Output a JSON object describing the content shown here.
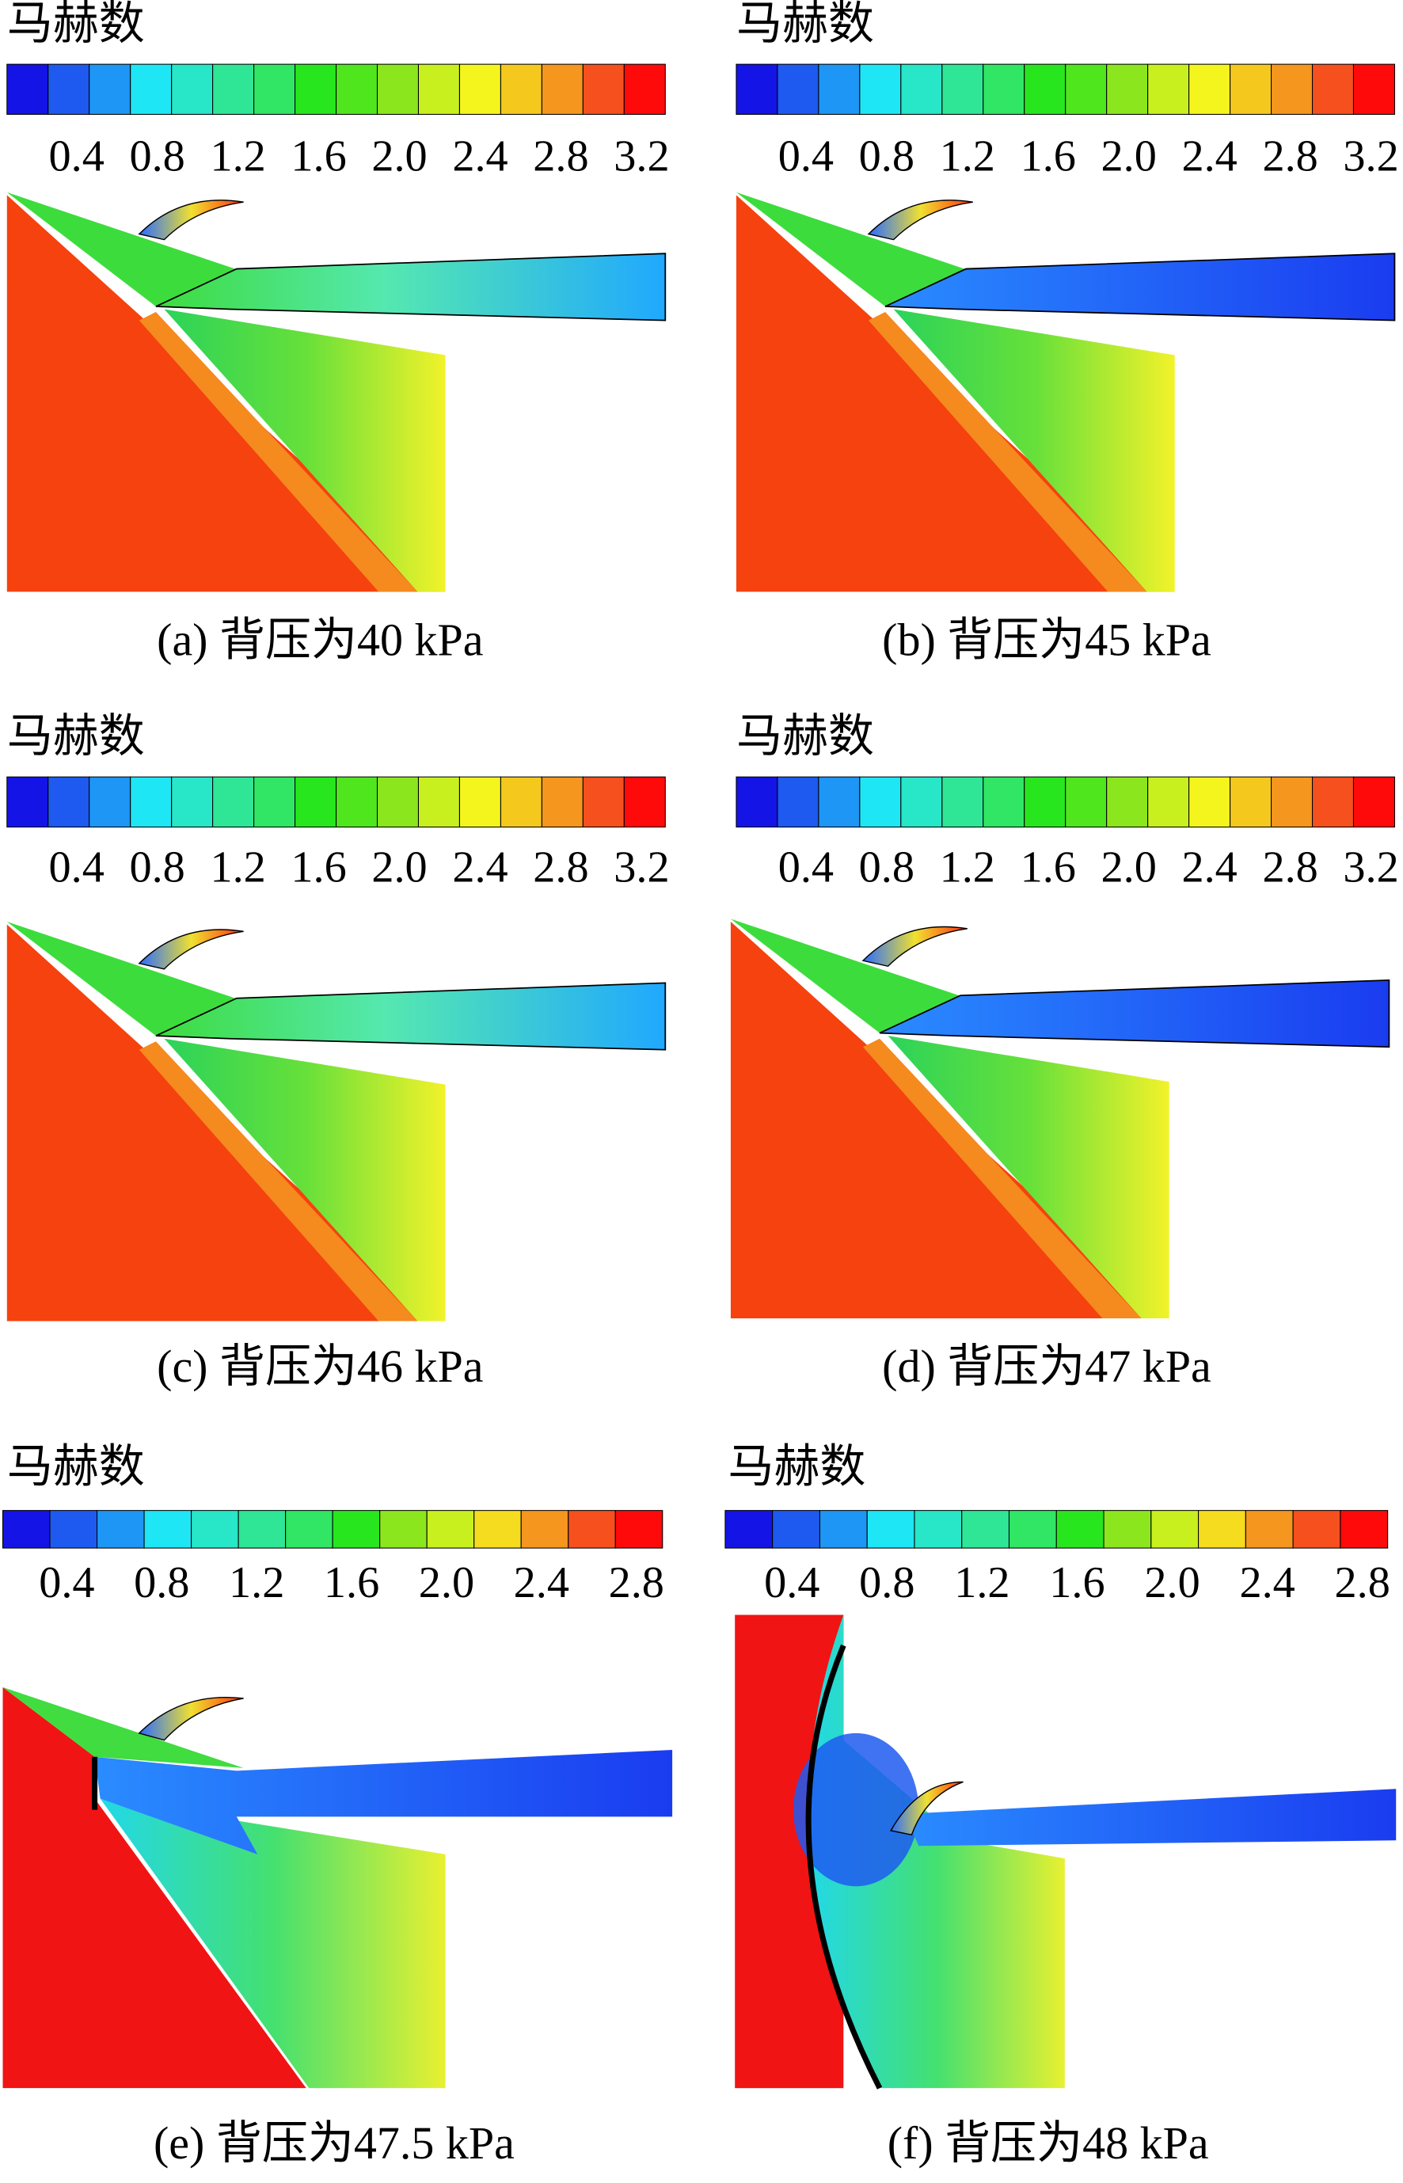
{
  "panels": [
    {
      "colorbar_title": "马赫数",
      "ticks": [
        "0.4",
        "0.8",
        "1.2",
        "1.6",
        "2.0",
        "2.4",
        "2.8",
        "3.2"
      ],
      "caption": "(a) 背压为40 kPa"
    },
    {
      "colorbar_title": "马赫数",
      "ticks": [
        "0.4",
        "0.8",
        "1.2",
        "1.6",
        "2.0",
        "2.4",
        "2.8",
        "3.2"
      ],
      "caption": "(b) 背压为45 kPa"
    },
    {
      "colorbar_title": "马赫数",
      "ticks": [
        "0.4",
        "0.8",
        "1.2",
        "1.6",
        "2.0",
        "2.4",
        "2.8",
        "3.2"
      ],
      "caption": "(c) 背压为46 kPa"
    },
    {
      "colorbar_title": "马赫数",
      "ticks": [
        "0.4",
        "0.8",
        "1.2",
        "1.6",
        "2.0",
        "2.4",
        "2.8",
        "3.2"
      ],
      "caption": "(d) 背压为47 kPa"
    },
    {
      "colorbar_title": "马赫数",
      "ticks": [
        "0.4",
        "0.8",
        "1.2",
        "1.6",
        "2.0",
        "2.4",
        "2.8"
      ],
      "caption": "(e) 背压为47.5 kPa"
    },
    {
      "colorbar_title": "马赫数",
      "ticks": [
        "0.4",
        "0.8",
        "1.2",
        "1.6",
        "2.0",
        "2.4",
        "2.8"
      ],
      "caption": "(f) 背压为48 kPa"
    }
  ]
}
